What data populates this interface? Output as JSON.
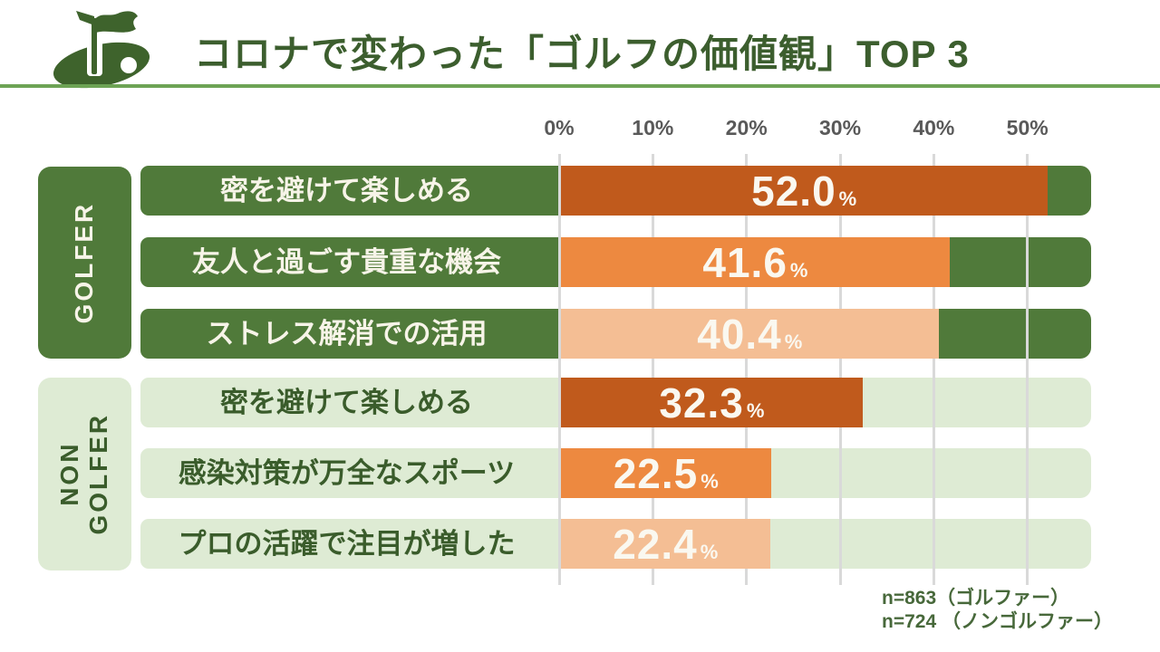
{
  "colors": {
    "green": "#507A3A",
    "light_green": "#DEEBD4",
    "dark_orange": "#C05A1C",
    "orange": "#ED8940",
    "peach": "#F4BE94",
    "title_green": "#3C5E2E",
    "rule_green": "#6DA355",
    "axis_gray": "#595959",
    "grid_gray": "#D9D9D9",
    "label_text_light": "#F7F4E8",
    "label_text_dark": "#3A5C2B",
    "value_text": "#FAF8F0"
  },
  "header": {
    "title": "コロナで変わった「ゴルフの価値観」TOP 3"
  },
  "axis": {
    "tick_labels": [
      "0%",
      "10%",
      "20%",
      "30%",
      "40%",
      "50%"
    ]
  },
  "chart_data": {
    "type": "bar",
    "orientation": "horizontal",
    "unit": "%",
    "xlim": [
      0,
      56.8
    ],
    "x_tick_labels": [
      "0%",
      "10%",
      "20%",
      "30%",
      "40%",
      "50%"
    ],
    "grid": true,
    "groups": [
      {
        "name": "GOLFER",
        "n_label": "n=863（ゴルファー）",
        "rows": [
          {
            "label": "密を避けて楽しめる",
            "value": 52.0
          },
          {
            "label": "友人と過ごす貴重な機会",
            "value": 41.6
          },
          {
            "label": "ストレス解消での活用",
            "value": 40.4
          }
        ]
      },
      {
        "name": "NON GOLFER",
        "n_label": "n=724 （ノンゴルファー）",
        "rows": [
          {
            "label": "密を避けて楽しめる",
            "value": 32.3
          },
          {
            "label": "感染対策が万全なスポーツ",
            "value": 22.5
          },
          {
            "label": "プロの活躍で注目が増した",
            "value": 22.4
          }
        ]
      }
    ]
  },
  "footer": {
    "line1": "n=863（ゴルファー）",
    "line2": "n=724 （ノンゴルファー）"
  }
}
